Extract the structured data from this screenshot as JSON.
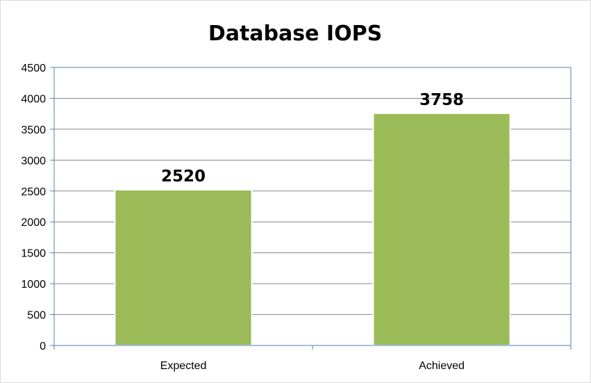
{
  "chart_data": {
    "type": "bar",
    "title": "Database IOPS",
    "categories": [
      "Expected",
      "Achieved"
    ],
    "values": [
      2520,
      3758
    ],
    "data_labels": [
      "2520",
      "3758"
    ],
    "xlabel": "",
    "ylabel": "",
    "ylim": [
      0,
      4500
    ],
    "yticks": [
      "0",
      "500",
      "1000",
      "1500",
      "2000",
      "2500",
      "3000",
      "3500",
      "4000",
      "4500"
    ],
    "grid": true,
    "legend": "none",
    "colors": {
      "bar": "#9bbb59",
      "bar_edge": "#ffffff",
      "grid": "#868686",
      "axis": "#4f81bd"
    }
  }
}
